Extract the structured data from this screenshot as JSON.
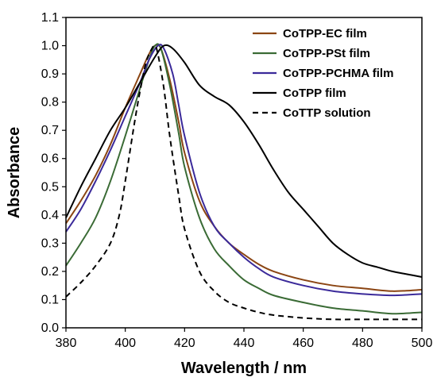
{
  "chart_data": {
    "type": "line",
    "title": "",
    "xlabel": "Wavelength / nm",
    "ylabel": "Absorbance",
    "xlim": [
      380,
      500
    ],
    "ylim": [
      0,
      1.1
    ],
    "x_ticks": [
      380,
      400,
      420,
      440,
      460,
      480,
      500
    ],
    "y_ticks": [
      0.0,
      0.1,
      0.2,
      0.3,
      0.4,
      0.5,
      0.6,
      0.7,
      0.8,
      0.9,
      1.0,
      1.1
    ],
    "x_tick_labels": [
      "380",
      "400",
      "420",
      "440",
      "460",
      "480",
      "500"
    ],
    "y_tick_labels": [
      "0.0",
      "0.1",
      "0.2",
      "0.3",
      "0.4",
      "0.5",
      "0.6",
      "0.7",
      "0.8",
      "0.9",
      "1.0",
      "1.1"
    ],
    "grid": false,
    "legend_position": "top-right",
    "series": [
      {
        "name": "CoTPP-EC film",
        "color": "#8B4513",
        "dash": "solid",
        "points": [
          [
            380,
            0.37
          ],
          [
            385,
            0.45
          ],
          [
            390,
            0.54
          ],
          [
            395,
            0.65
          ],
          [
            400,
            0.78
          ],
          [
            405,
            0.9
          ],
          [
            408,
            0.97
          ],
          [
            410,
            1.0
          ],
          [
            412,
            0.99
          ],
          [
            415,
            0.88
          ],
          [
            418,
            0.73
          ],
          [
            420,
            0.62
          ],
          [
            425,
            0.45
          ],
          [
            430,
            0.36
          ],
          [
            435,
            0.3
          ],
          [
            440,
            0.26
          ],
          [
            445,
            0.225
          ],
          [
            450,
            0.2
          ],
          [
            460,
            0.17
          ],
          [
            470,
            0.15
          ],
          [
            480,
            0.14
          ],
          [
            490,
            0.13
          ],
          [
            500,
            0.135
          ]
        ]
      },
      {
        "name": "CoTPP-PSt film",
        "color": "#3A6B35",
        "dash": "solid",
        "points": [
          [
            380,
            0.22
          ],
          [
            385,
            0.3
          ],
          [
            390,
            0.39
          ],
          [
            395,
            0.52
          ],
          [
            400,
            0.68
          ],
          [
            405,
            0.85
          ],
          [
            408,
            0.95
          ],
          [
            410,
            1.0
          ],
          [
            412,
            0.99
          ],
          [
            415,
            0.86
          ],
          [
            418,
            0.69
          ],
          [
            420,
            0.57
          ],
          [
            425,
            0.39
          ],
          [
            430,
            0.28
          ],
          [
            435,
            0.22
          ],
          [
            440,
            0.17
          ],
          [
            445,
            0.14
          ],
          [
            450,
            0.115
          ],
          [
            460,
            0.09
          ],
          [
            470,
            0.07
          ],
          [
            480,
            0.06
          ],
          [
            490,
            0.05
          ],
          [
            500,
            0.055
          ]
        ]
      },
      {
        "name": "CoTPP-PCHMA film",
        "color": "#3B2A9A",
        "dash": "solid",
        "points": [
          [
            380,
            0.34
          ],
          [
            385,
            0.42
          ],
          [
            390,
            0.52
          ],
          [
            395,
            0.63
          ],
          [
            400,
            0.75
          ],
          [
            405,
            0.87
          ],
          [
            408,
            0.95
          ],
          [
            411,
            1.0
          ],
          [
            413,
            0.99
          ],
          [
            416,
            0.9
          ],
          [
            418,
            0.79
          ],
          [
            420,
            0.68
          ],
          [
            425,
            0.48
          ],
          [
            430,
            0.36
          ],
          [
            435,
            0.3
          ],
          [
            440,
            0.25
          ],
          [
            445,
            0.21
          ],
          [
            450,
            0.18
          ],
          [
            460,
            0.15
          ],
          [
            470,
            0.13
          ],
          [
            480,
            0.12
          ],
          [
            490,
            0.115
          ],
          [
            500,
            0.12
          ]
        ]
      },
      {
        "name": "CoTPP film",
        "color": "#000000",
        "dash": "solid",
        "points": [
          [
            380,
            0.39
          ],
          [
            385,
            0.5
          ],
          [
            390,
            0.6
          ],
          [
            395,
            0.7
          ],
          [
            400,
            0.78
          ],
          [
            405,
            0.87
          ],
          [
            410,
            0.96
          ],
          [
            413,
            1.0
          ],
          [
            416,
            0.99
          ],
          [
            420,
            0.94
          ],
          [
            425,
            0.86
          ],
          [
            430,
            0.82
          ],
          [
            435,
            0.79
          ],
          [
            440,
            0.73
          ],
          [
            445,
            0.65
          ],
          [
            450,
            0.56
          ],
          [
            455,
            0.48
          ],
          [
            460,
            0.42
          ],
          [
            465,
            0.36
          ],
          [
            470,
            0.3
          ],
          [
            475,
            0.26
          ],
          [
            480,
            0.23
          ],
          [
            485,
            0.215
          ],
          [
            490,
            0.2
          ],
          [
            495,
            0.19
          ],
          [
            500,
            0.18
          ]
        ]
      },
      {
        "name": "CoTTP solution",
        "color": "#000000",
        "dash": "dashed",
        "points": [
          [
            380,
            0.11
          ],
          [
            385,
            0.16
          ],
          [
            390,
            0.22
          ],
          [
            395,
            0.3
          ],
          [
            398,
            0.4
          ],
          [
            400,
            0.52
          ],
          [
            403,
            0.72
          ],
          [
            405,
            0.84
          ],
          [
            407,
            0.94
          ],
          [
            409,
            0.99
          ],
          [
            410,
            1.0
          ],
          [
            411,
            0.97
          ],
          [
            413,
            0.85
          ],
          [
            415,
            0.68
          ],
          [
            418,
            0.47
          ],
          [
            420,
            0.35
          ],
          [
            425,
            0.2
          ],
          [
            430,
            0.13
          ],
          [
            435,
            0.09
          ],
          [
            440,
            0.07
          ],
          [
            445,
            0.055
          ],
          [
            450,
            0.045
          ],
          [
            460,
            0.035
          ],
          [
            470,
            0.03
          ],
          [
            480,
            0.03
          ],
          [
            500,
            0.03
          ]
        ]
      }
    ]
  }
}
